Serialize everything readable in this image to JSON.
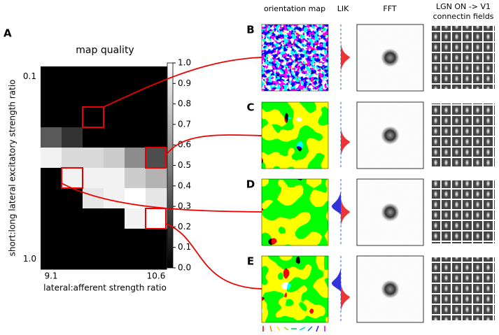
{
  "chart_data": {
    "type": "heatmap",
    "panel_label": "A",
    "title": "map quality",
    "x_label": "lateral:afferent strength ratio",
    "y_label": "short:long lateral excitatory strength ratio",
    "x_tick_labels": [
      "9.1",
      null,
      null,
      null,
      null,
      "10.6"
    ],
    "y_tick_labels": [
      "0.1",
      null,
      null,
      null,
      null,
      null,
      null,
      null,
      null,
      "1.0"
    ],
    "values": [
      [
        0,
        0,
        0,
        0,
        0,
        0
      ],
      [
        0,
        0,
        0,
        0,
        0,
        0
      ],
      [
        0,
        0,
        0,
        0,
        0,
        0
      ],
      [
        0.35,
        0.2,
        0,
        0,
        0,
        0
      ],
      [
        0.95,
        0.85,
        0.85,
        0.8,
        0.55,
        0.3
      ],
      [
        0,
        0.95,
        0.95,
        0.95,
        0.8,
        0.7
      ],
      [
        0,
        0,
        0.9,
        0.95,
        1.0,
        0.9
      ],
      [
        0,
        0,
        0,
        0,
        0.95,
        1.0
      ],
      [
        0,
        0,
        0,
        0,
        0,
        0
      ],
      [
        0,
        0,
        0,
        0,
        0,
        0
      ]
    ],
    "vlim": [
      0,
      1
    ],
    "colorbar_ticks": [
      {
        "value": 0,
        "label": "0.0"
      },
      {
        "value": 0.1,
        "label": "0.1"
      },
      {
        "value": 0.2,
        "label": "0.2"
      },
      {
        "value": 0.3,
        "label": "0.3"
      },
      {
        "value": 0.4,
        "label": "0.4"
      },
      {
        "value": 0.5,
        "label": "0.5"
      },
      {
        "value": 0.6,
        "label": "0.6"
      },
      {
        "value": 0.7,
        "label": "0.7"
      },
      {
        "value": 0.8,
        "label": "0.8"
      },
      {
        "value": 0.9,
        "label": "0.9"
      },
      {
        "value": 1.0,
        "label": "1.0"
      }
    ]
  },
  "panels": {
    "labels": [
      "B",
      "C",
      "D",
      "E"
    ],
    "columns": [
      "orientation map",
      "LIK",
      "FFT",
      "LGN ON -> V1",
      "connectin fields"
    ]
  }
}
